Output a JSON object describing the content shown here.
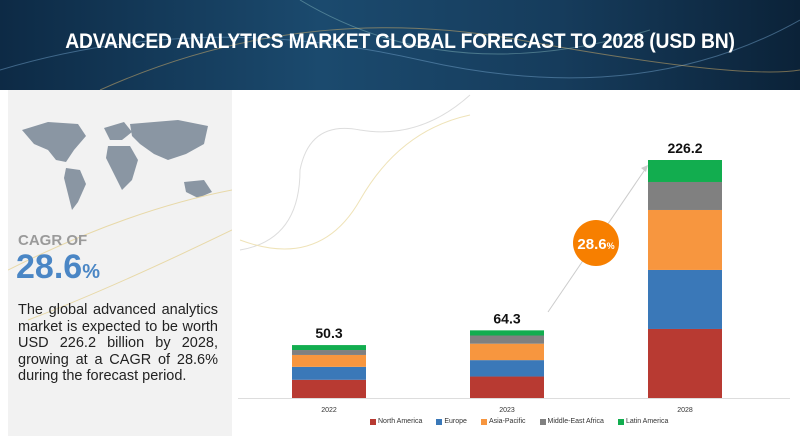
{
  "header": {
    "title": "ADVANCED ANALYTICS MARKET GLOBAL FORECAST TO 2028 (USD BN)"
  },
  "sidebar": {
    "cagr_label": "CAGR OF",
    "cagr_value": "28.6",
    "cagr_unit": "%",
    "description": "The global advanced analytics market is expected to be worth USD 226.2 billion by 2028, growing at a CAGR of 28.6% during the forecast period.",
    "icon": "world-map"
  },
  "chart_data": {
    "type": "bar",
    "stacked": true,
    "categories": [
      "2022",
      "2023",
      "2028"
    ],
    "totals": [
      "50.3",
      "64.3",
      "226.2"
    ],
    "series": [
      {
        "name": "North America",
        "color": "#b83a32",
        "values": [
          17.3,
          20.4,
          65.6
        ]
      },
      {
        "name": "Europe",
        "color": "#3a78b8",
        "values": [
          12.3,
          15.6,
          56.1
        ]
      },
      {
        "name": "Asia-Pacific",
        "color": "#f7963f",
        "values": [
          11.3,
          15.6,
          57.0
        ]
      },
      {
        "name": "Middle-East Africa",
        "color": "#808080",
        "values": [
          4.7,
          7.8,
          26.6
        ]
      },
      {
        "name": "Latin America",
        "color": "#12ad4f",
        "values": [
          4.7,
          4.9,
          20.9
        ]
      }
    ],
    "annotation": {
      "label": "28.6",
      "unit": "%",
      "color": "#f77f00"
    },
    "legend": "bottom",
    "grid": false
  }
}
